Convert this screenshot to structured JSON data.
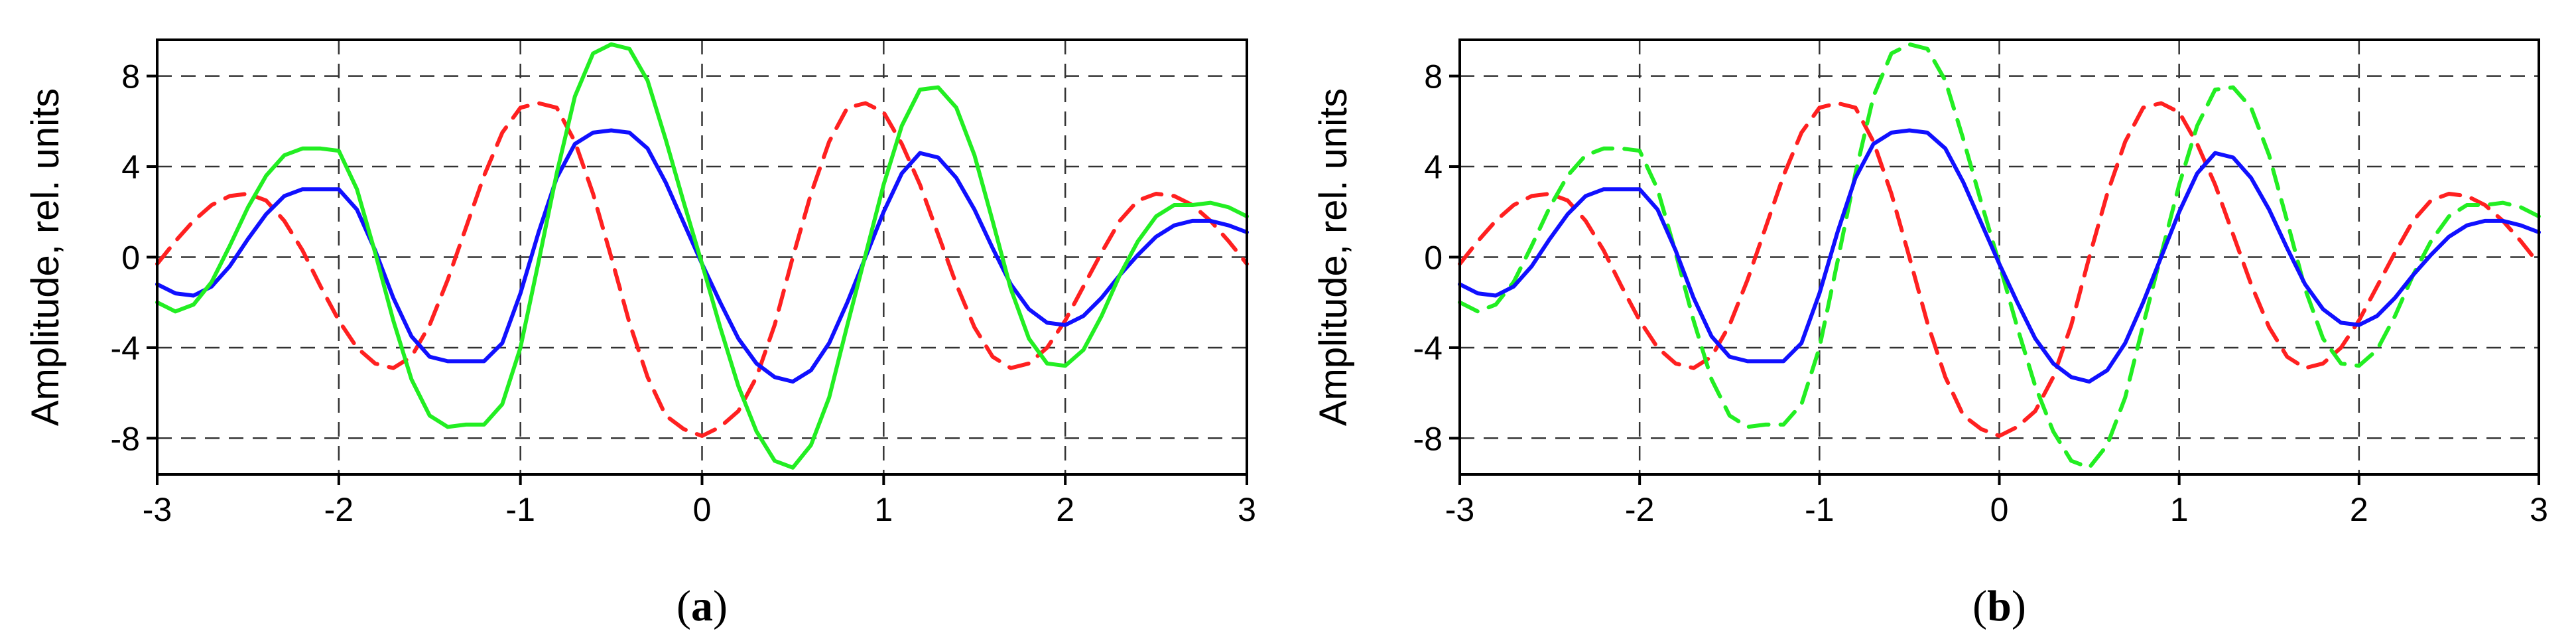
{
  "chart_data": [
    {
      "type": "line",
      "caption_letter": "a",
      "ylabel": "Amplitude, rel. units",
      "xlabel": "",
      "xlim": [
        -3,
        3
      ],
      "ylim": [
        -9.6,
        9.6
      ],
      "xticks": [
        -3,
        -2,
        -1,
        0,
        1,
        2,
        3
      ],
      "xtick_labels": [
        "-3",
        "-2",
        "-1",
        "0",
        "1",
        "2",
        "3"
      ],
      "yticks": [
        8,
        4,
        0,
        -4,
        -8
      ],
      "ytick_labels": [
        "8",
        "4",
        "0",
        "-4",
        "-8"
      ],
      "grid": "dashed",
      "series": [
        {
          "color": "#ff2020",
          "dash": true,
          "x": [
            -3.0,
            -2.9,
            -2.8,
            -2.7,
            -2.6,
            -2.5,
            -2.4,
            -2.3,
            -2.2,
            -2.1,
            -2.0,
            -1.9,
            -1.8,
            -1.7,
            -1.6,
            -1.5,
            -1.4,
            -1.3,
            -1.2,
            -1.1,
            -1.0,
            -0.9,
            -0.8,
            -0.7,
            -0.6,
            -0.5,
            -0.4,
            -0.3,
            -0.2,
            -0.1,
            0.0,
            0.1,
            0.2,
            0.3,
            0.4,
            0.5,
            0.6,
            0.7,
            0.8,
            0.9,
            1.0,
            1.1,
            1.2,
            1.3,
            1.4,
            1.5,
            1.6,
            1.7,
            1.8,
            1.9,
            2.0,
            2.1,
            2.2,
            2.3,
            2.4,
            2.5,
            2.6,
            2.7,
            2.8,
            2.9,
            3.0
          ],
          "y": [
            -0.3,
            0.7,
            1.6,
            2.3,
            2.7,
            2.8,
            2.5,
            1.6,
            0.3,
            -1.3,
            -2.8,
            -4.0,
            -4.7,
            -4.9,
            -4.4,
            -3.0,
            -1.0,
            1.3,
            3.6,
            5.5,
            6.6,
            6.8,
            6.6,
            5.1,
            2.8,
            0.0,
            -2.9,
            -5.3,
            -7.0,
            -7.6,
            -7.9,
            -7.5,
            -6.8,
            -5.3,
            -3.0,
            0.0,
            2.8,
            5.1,
            6.6,
            6.8,
            6.4,
            5.0,
            3.2,
            1.0,
            -1.2,
            -3.1,
            -4.4,
            -4.9,
            -4.7,
            -4.0,
            -2.8,
            -1.3,
            0.2,
            1.6,
            2.5,
            2.8,
            2.7,
            2.3,
            1.6,
            0.7,
            -0.3
          ]
        },
        {
          "color": "#1010ff",
          "dash": false,
          "x": [
            -3.0,
            -2.9,
            -2.8,
            -2.7,
            -2.6,
            -2.5,
            -2.4,
            -2.3,
            -2.2,
            -2.1,
            -2.0,
            -1.9,
            -1.8,
            -1.7,
            -1.6,
            -1.5,
            -1.4,
            -1.3,
            -1.2,
            -1.1,
            -1.0,
            -0.9,
            -0.8,
            -0.7,
            -0.6,
            -0.5,
            -0.4,
            -0.3,
            -0.2,
            -0.1,
            0.0,
            0.1,
            0.2,
            0.3,
            0.4,
            0.5,
            0.6,
            0.7,
            0.8,
            0.9,
            1.0,
            1.1,
            1.2,
            1.3,
            1.4,
            1.5,
            1.6,
            1.7,
            1.8,
            1.9,
            2.0,
            2.1,
            2.2,
            2.3,
            2.4,
            2.5,
            2.6,
            2.7,
            2.8,
            2.9,
            3.0
          ],
          "y": [
            -1.2,
            -1.6,
            -1.7,
            -1.3,
            -0.4,
            0.8,
            1.9,
            2.7,
            3.0,
            3.0,
            3.0,
            2.1,
            0.3,
            -1.8,
            -3.5,
            -4.4,
            -4.6,
            -4.6,
            -4.6,
            -3.8,
            -1.6,
            1.1,
            3.5,
            5.0,
            5.5,
            5.6,
            5.5,
            4.8,
            3.3,
            1.5,
            -0.3,
            -2.0,
            -3.6,
            -4.7,
            -5.3,
            -5.5,
            -5.0,
            -3.8,
            -2.0,
            0.0,
            2.0,
            3.7,
            4.6,
            4.4,
            3.5,
            2.1,
            0.4,
            -1.2,
            -2.3,
            -2.9,
            -3.0,
            -2.6,
            -1.8,
            -0.8,
            0.1,
            0.9,
            1.4,
            1.6,
            1.6,
            1.4,
            1.1
          ]
        },
        {
          "color": "#22ee22",
          "dash": false,
          "x": [
            -3.0,
            -2.9,
            -2.8,
            -2.7,
            -2.6,
            -2.5,
            -2.4,
            -2.3,
            -2.2,
            -2.1,
            -2.0,
            -1.9,
            -1.8,
            -1.7,
            -1.6,
            -1.5,
            -1.4,
            -1.3,
            -1.2,
            -1.1,
            -1.0,
            -0.9,
            -0.8,
            -0.7,
            -0.6,
            -0.5,
            -0.4,
            -0.3,
            -0.2,
            -0.1,
            0.0,
            0.1,
            0.2,
            0.3,
            0.4,
            0.5,
            0.6,
            0.7,
            0.8,
            0.9,
            1.0,
            1.1,
            1.2,
            1.3,
            1.4,
            1.5,
            1.6,
            1.7,
            1.8,
            1.9,
            2.0,
            2.1,
            2.2,
            2.3,
            2.4,
            2.5,
            2.6,
            2.7,
            2.8,
            2.9,
            3.0
          ],
          "y": [
            -2.0,
            -2.4,
            -2.1,
            -1.1,
            0.5,
            2.2,
            3.6,
            4.5,
            4.8,
            4.8,
            4.7,
            3.0,
            0.2,
            -2.8,
            -5.4,
            -7.0,
            -7.5,
            -7.4,
            -7.4,
            -6.5,
            -4.0,
            -0.2,
            3.7,
            7.1,
            9.0,
            9.4,
            9.2,
            7.8,
            5.2,
            2.4,
            -0.3,
            -3.1,
            -5.7,
            -7.7,
            -9.0,
            -9.3,
            -8.3,
            -6.2,
            -3.0,
            0.1,
            3.2,
            5.8,
            7.4,
            7.5,
            6.6,
            4.5,
            1.6,
            -1.4,
            -3.6,
            -4.7,
            -4.8,
            -4.1,
            -2.6,
            -0.8,
            0.7,
            1.8,
            2.3,
            2.3,
            2.4,
            2.2,
            1.8
          ]
        }
      ]
    },
    {
      "type": "line",
      "caption_letter": "b",
      "ylabel": "Amplitude, rel. units",
      "xlabel": "",
      "xlim": [
        -3,
        3
      ],
      "ylim": [
        -9.6,
        9.6
      ],
      "xticks": [
        -3,
        -2,
        -1,
        0,
        1,
        2,
        3
      ],
      "xtick_labels": [
        "-3",
        "-2",
        "-1",
        "0",
        "1",
        "2",
        "3"
      ],
      "yticks": [
        8,
        4,
        0,
        -4,
        -8
      ],
      "ytick_labels": [
        "8",
        "4",
        "0",
        "-4",
        "-8"
      ],
      "grid": "dashed",
      "series": [
        {
          "color": "#ff2020",
          "dash": true,
          "x": [
            -3.0,
            -2.9,
            -2.8,
            -2.7,
            -2.6,
            -2.5,
            -2.4,
            -2.3,
            -2.2,
            -2.1,
            -2.0,
            -1.9,
            -1.8,
            -1.7,
            -1.6,
            -1.5,
            -1.4,
            -1.3,
            -1.2,
            -1.1,
            -1.0,
            -0.9,
            -0.8,
            -0.7,
            -0.6,
            -0.5,
            -0.4,
            -0.3,
            -0.2,
            -0.1,
            0.0,
            0.1,
            0.2,
            0.3,
            0.4,
            0.5,
            0.6,
            0.7,
            0.8,
            0.9,
            1.0,
            1.1,
            1.2,
            1.3,
            1.4,
            1.5,
            1.6,
            1.7,
            1.8,
            1.9,
            2.0,
            2.1,
            2.2,
            2.3,
            2.4,
            2.5,
            2.6,
            2.7,
            2.8,
            2.9,
            3.0
          ],
          "y": [
            -0.3,
            0.7,
            1.6,
            2.3,
            2.7,
            2.8,
            2.5,
            1.6,
            0.3,
            -1.3,
            -2.8,
            -4.0,
            -4.7,
            -4.9,
            -4.4,
            -3.0,
            -1.0,
            1.3,
            3.6,
            5.5,
            6.6,
            6.8,
            6.6,
            5.1,
            2.8,
            0.0,
            -2.9,
            -5.3,
            -7.0,
            -7.6,
            -7.9,
            -7.5,
            -6.8,
            -5.3,
            -3.0,
            0.0,
            2.8,
            5.1,
            6.6,
            6.8,
            6.4,
            5.0,
            3.2,
            1.0,
            -1.2,
            -3.1,
            -4.4,
            -4.9,
            -4.7,
            -4.0,
            -2.8,
            -1.3,
            0.2,
            1.6,
            2.5,
            2.8,
            2.7,
            2.3,
            1.6,
            0.7,
            -0.3
          ]
        },
        {
          "color": "#22ee22",
          "dash": true,
          "x": [
            -3.0,
            -2.9,
            -2.8,
            -2.7,
            -2.6,
            -2.5,
            -2.4,
            -2.3,
            -2.2,
            -2.1,
            -2.0,
            -1.9,
            -1.8,
            -1.7,
            -1.6,
            -1.5,
            -1.4,
            -1.3,
            -1.2,
            -1.1,
            -1.0,
            -0.9,
            -0.8,
            -0.7,
            -0.6,
            -0.5,
            -0.4,
            -0.3,
            -0.2,
            -0.1,
            0.0,
            0.1,
            0.2,
            0.3,
            0.4,
            0.5,
            0.6,
            0.7,
            0.8,
            0.9,
            1.0,
            1.1,
            1.2,
            1.3,
            1.4,
            1.5,
            1.6,
            1.7,
            1.8,
            1.9,
            2.0,
            2.1,
            2.2,
            2.3,
            2.4,
            2.5,
            2.6,
            2.7,
            2.8,
            2.9,
            3.0
          ],
          "y": [
            -2.0,
            -2.4,
            -2.1,
            -1.1,
            0.5,
            2.2,
            3.6,
            4.5,
            4.8,
            4.8,
            4.7,
            3.0,
            0.2,
            -2.8,
            -5.4,
            -7.0,
            -7.5,
            -7.4,
            -7.4,
            -6.5,
            -4.0,
            -0.2,
            3.7,
            7.1,
            9.0,
            9.4,
            9.2,
            7.8,
            5.2,
            2.4,
            -0.3,
            -3.1,
            -5.7,
            -7.7,
            -9.0,
            -9.3,
            -8.3,
            -6.2,
            -3.0,
            0.1,
            3.2,
            5.8,
            7.4,
            7.5,
            6.6,
            4.5,
            1.6,
            -1.4,
            -3.6,
            -4.7,
            -4.8,
            -4.1,
            -2.6,
            -0.8,
            0.7,
            1.8,
            2.3,
            2.3,
            2.4,
            2.2,
            1.8
          ]
        },
        {
          "color": "#1010ff",
          "dash": false,
          "x": [
            -3.0,
            -2.9,
            -2.8,
            -2.7,
            -2.6,
            -2.5,
            -2.4,
            -2.3,
            -2.2,
            -2.1,
            -2.0,
            -1.9,
            -1.8,
            -1.7,
            -1.6,
            -1.5,
            -1.4,
            -1.3,
            -1.2,
            -1.1,
            -1.0,
            -0.9,
            -0.8,
            -0.7,
            -0.6,
            -0.5,
            -0.4,
            -0.3,
            -0.2,
            -0.1,
            0.0,
            0.1,
            0.2,
            0.3,
            0.4,
            0.5,
            0.6,
            0.7,
            0.8,
            0.9,
            1.0,
            1.1,
            1.2,
            1.3,
            1.4,
            1.5,
            1.6,
            1.7,
            1.8,
            1.9,
            2.0,
            2.1,
            2.2,
            2.3,
            2.4,
            2.5,
            2.6,
            2.7,
            2.8,
            2.9,
            3.0
          ],
          "y": [
            -1.2,
            -1.6,
            -1.7,
            -1.3,
            -0.4,
            0.8,
            1.9,
            2.7,
            3.0,
            3.0,
            3.0,
            2.1,
            0.3,
            -1.8,
            -3.5,
            -4.4,
            -4.6,
            -4.6,
            -4.6,
            -3.8,
            -1.6,
            1.1,
            3.5,
            5.0,
            5.5,
            5.6,
            5.5,
            4.8,
            3.3,
            1.5,
            -0.3,
            -2.0,
            -3.6,
            -4.7,
            -5.3,
            -5.5,
            -5.0,
            -3.8,
            -2.0,
            0.0,
            2.0,
            3.7,
            4.6,
            4.4,
            3.5,
            2.1,
            0.4,
            -1.2,
            -2.3,
            -2.9,
            -3.0,
            -2.6,
            -1.8,
            -0.8,
            0.1,
            0.9,
            1.4,
            1.6,
            1.6,
            1.4,
            1.1
          ]
        }
      ]
    }
  ]
}
